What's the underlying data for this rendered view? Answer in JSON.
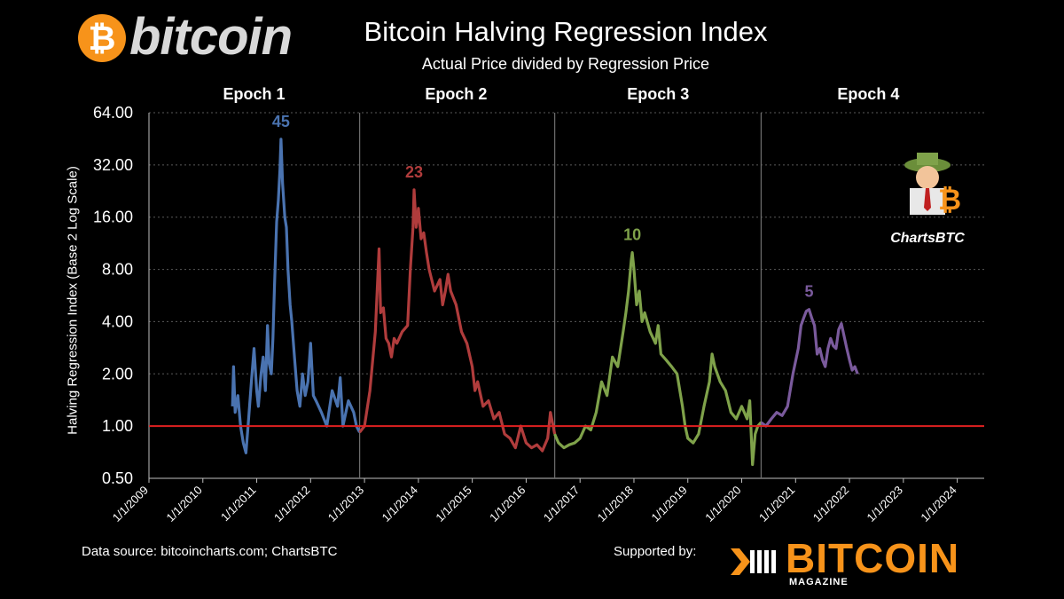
{
  "header": {
    "logo_symbol": "₿",
    "logo_text": "bitcoin",
    "title": "Bitcoin Halving Regression Index",
    "subtitle": "Actual Price divided by Regression Price"
  },
  "footer": {
    "source": "Data source: bitcoincharts.com; ChartsBTC",
    "supported_by": "Supported by:",
    "sponsor_name": "BITCOIN",
    "sponsor_sub": "MAGAZINE"
  },
  "watermark": {
    "label": "ChartsBTC"
  },
  "chart_data": {
    "type": "line",
    "title": "Bitcoin Halving Regression Index",
    "ylabel": "Halving Regression Index (Base 2 Log Scale)",
    "xlabel": "",
    "y_scale": "log2",
    "ylim": [
      0.5,
      64
    ],
    "y_ticks": [
      "0.50",
      "1.00",
      "2.00",
      "4.00",
      "8.00",
      "16.00",
      "32.00",
      "64.00"
    ],
    "x_ticks": [
      "1/1/2009",
      "1/1/2010",
      "1/1/2011",
      "1/1/2012",
      "1/1/2013",
      "1/1/2014",
      "1/1/2015",
      "1/1/2016",
      "1/1/2017",
      "1/1/2018",
      "1/1/2019",
      "1/1/2020",
      "1/1/2021",
      "1/1/2022",
      "1/1/2023",
      "1/1/2024"
    ],
    "xlim": [
      2009.0,
      2024.5
    ],
    "reference_line": {
      "y": 1.0,
      "color": "#e02020"
    },
    "halving_dates": [
      2012.91,
      2016.53,
      2020.36
    ],
    "epochs": [
      {
        "label": "Epoch 1",
        "center": 2010.95
      },
      {
        "label": "Epoch 2",
        "center": 2014.7
      },
      {
        "label": "Epoch 3",
        "center": 2018.45
      },
      {
        "label": "Epoch 4",
        "center": 2022.35
      }
    ],
    "series": [
      {
        "name": "Epoch 1",
        "color": "#4a73b0",
        "peak_label": "45",
        "peak": [
          2011.45,
          45
        ],
        "points": [
          [
            2010.55,
            1.3
          ],
          [
            2010.57,
            2.2
          ],
          [
            2010.6,
            1.2
          ],
          [
            2010.65,
            1.5
          ],
          [
            2010.7,
            1.0
          ],
          [
            2010.75,
            0.8
          ],
          [
            2010.8,
            0.7
          ],
          [
            2010.85,
            1.1
          ],
          [
            2010.9,
            1.8
          ],
          [
            2010.95,
            2.8
          ],
          [
            2011.0,
            1.6
          ],
          [
            2011.03,
            1.3
          ],
          [
            2011.08,
            2.0
          ],
          [
            2011.12,
            2.5
          ],
          [
            2011.16,
            1.6
          ],
          [
            2011.2,
            3.8
          ],
          [
            2011.23,
            2.3
          ],
          [
            2011.27,
            2.0
          ],
          [
            2011.3,
            3.2
          ],
          [
            2011.33,
            6.5
          ],
          [
            2011.37,
            15
          ],
          [
            2011.4,
            20
          ],
          [
            2011.43,
            30
          ],
          [
            2011.45,
            45
          ],
          [
            2011.48,
            25
          ],
          [
            2011.52,
            16
          ],
          [
            2011.55,
            14
          ],
          [
            2011.58,
            8
          ],
          [
            2011.62,
            5
          ],
          [
            2011.65,
            4
          ],
          [
            2011.7,
            2.5
          ],
          [
            2011.75,
            1.6
          ],
          [
            2011.8,
            1.3
          ],
          [
            2011.85,
            2.0
          ],
          [
            2011.9,
            1.5
          ],
          [
            2011.95,
            1.8
          ],
          [
            2012.0,
            3.0
          ],
          [
            2012.05,
            1.5
          ],
          [
            2012.1,
            1.4
          ],
          [
            2012.2,
            1.2
          ],
          [
            2012.3,
            1.0
          ],
          [
            2012.4,
            1.6
          ],
          [
            2012.5,
            1.3
          ],
          [
            2012.55,
            1.9
          ],
          [
            2012.6,
            1.0
          ],
          [
            2012.7,
            1.4
          ],
          [
            2012.8,
            1.2
          ],
          [
            2012.85,
            1.0
          ],
          [
            2012.91,
            0.92
          ]
        ]
      },
      {
        "name": "Epoch 2",
        "color": "#b03c3c",
        "peak_label": "23",
        "peak": [
          2013.92,
          23
        ],
        "points": [
          [
            2012.91,
            0.92
          ],
          [
            2013.0,
            1.0
          ],
          [
            2013.1,
            1.6
          ],
          [
            2013.2,
            3.5
          ],
          [
            2013.27,
            10.5
          ],
          [
            2013.3,
            4.5
          ],
          [
            2013.35,
            4.8
          ],
          [
            2013.4,
            3.2
          ],
          [
            2013.45,
            3.0
          ],
          [
            2013.5,
            2.5
          ],
          [
            2013.55,
            3.2
          ],
          [
            2013.6,
            3.0
          ],
          [
            2013.7,
            3.5
          ],
          [
            2013.8,
            3.8
          ],
          [
            2013.85,
            8
          ],
          [
            2013.9,
            14
          ],
          [
            2013.92,
            23
          ],
          [
            2013.96,
            14
          ],
          [
            2014.0,
            18
          ],
          [
            2014.05,
            12
          ],
          [
            2014.1,
            13
          ],
          [
            2014.15,
            10
          ],
          [
            2014.2,
            8
          ],
          [
            2014.3,
            6
          ],
          [
            2014.4,
            7
          ],
          [
            2014.45,
            5
          ],
          [
            2014.5,
            6
          ],
          [
            2014.55,
            7.5
          ],
          [
            2014.6,
            6
          ],
          [
            2014.7,
            5
          ],
          [
            2014.8,
            3.5
          ],
          [
            2014.9,
            3.0
          ],
          [
            2015.0,
            2.2
          ],
          [
            2015.05,
            1.6
          ],
          [
            2015.1,
            1.8
          ],
          [
            2015.2,
            1.3
          ],
          [
            2015.3,
            1.4
          ],
          [
            2015.4,
            1.1
          ],
          [
            2015.5,
            1.2
          ],
          [
            2015.6,
            0.9
          ],
          [
            2015.7,
            0.85
          ],
          [
            2015.8,
            0.75
          ],
          [
            2015.9,
            1.0
          ],
          [
            2016.0,
            0.8
          ],
          [
            2016.1,
            0.75
          ],
          [
            2016.2,
            0.78
          ],
          [
            2016.3,
            0.72
          ],
          [
            2016.4,
            0.85
          ],
          [
            2016.45,
            1.2
          ],
          [
            2016.53,
            0.9
          ]
        ]
      },
      {
        "name": "Epoch 3",
        "color": "#7fa24a",
        "peak_label": "10",
        "peak": [
          2017.97,
          10
        ],
        "points": [
          [
            2016.53,
            0.9
          ],
          [
            2016.6,
            0.8
          ],
          [
            2016.7,
            0.75
          ],
          [
            2016.8,
            0.78
          ],
          [
            2016.9,
            0.8
          ],
          [
            2017.0,
            0.85
          ],
          [
            2017.1,
            1.0
          ],
          [
            2017.2,
            0.95
          ],
          [
            2017.3,
            1.2
          ],
          [
            2017.4,
            1.8
          ],
          [
            2017.5,
            1.5
          ],
          [
            2017.6,
            2.5
          ],
          [
            2017.7,
            2.2
          ],
          [
            2017.8,
            3.5
          ],
          [
            2017.85,
            4.5
          ],
          [
            2017.9,
            6
          ],
          [
            2017.95,
            9
          ],
          [
            2017.97,
            10
          ],
          [
            2018.0,
            8
          ],
          [
            2018.05,
            5
          ],
          [
            2018.1,
            6
          ],
          [
            2018.15,
            4
          ],
          [
            2018.2,
            4.5
          ],
          [
            2018.3,
            3.5
          ],
          [
            2018.4,
            3.0
          ],
          [
            2018.45,
            3.8
          ],
          [
            2018.5,
            2.6
          ],
          [
            2018.6,
            2.4
          ],
          [
            2018.7,
            2.2
          ],
          [
            2018.8,
            2.0
          ],
          [
            2018.9,
            1.3
          ],
          [
            2018.95,
            1.0
          ],
          [
            2019.0,
            0.85
          ],
          [
            2019.1,
            0.8
          ],
          [
            2019.2,
            0.9
          ],
          [
            2019.3,
            1.3
          ],
          [
            2019.4,
            1.8
          ],
          [
            2019.45,
            2.6
          ],
          [
            2019.5,
            2.2
          ],
          [
            2019.6,
            1.8
          ],
          [
            2019.7,
            1.6
          ],
          [
            2019.8,
            1.2
          ],
          [
            2019.9,
            1.1
          ],
          [
            2020.0,
            1.3
          ],
          [
            2020.1,
            1.1
          ],
          [
            2020.15,
            1.4
          ],
          [
            2020.2,
            0.6
          ],
          [
            2020.25,
            0.9
          ],
          [
            2020.3,
            1.0
          ],
          [
            2020.36,
            1.05
          ]
        ]
      },
      {
        "name": "Epoch 4",
        "color": "#7a5a9c",
        "peak_label": "5",
        "peak": [
          2021.25,
          4.7
        ],
        "points": [
          [
            2020.36,
            1.05
          ],
          [
            2020.45,
            1.0
          ],
          [
            2020.55,
            1.1
          ],
          [
            2020.65,
            1.2
          ],
          [
            2020.75,
            1.15
          ],
          [
            2020.85,
            1.3
          ],
          [
            2020.95,
            2.0
          ],
          [
            2021.05,
            2.8
          ],
          [
            2021.1,
            3.8
          ],
          [
            2021.15,
            4.2
          ],
          [
            2021.2,
            4.6
          ],
          [
            2021.25,
            4.7
          ],
          [
            2021.3,
            4.2
          ],
          [
            2021.35,
            3.8
          ],
          [
            2021.4,
            2.6
          ],
          [
            2021.45,
            2.8
          ],
          [
            2021.5,
            2.4
          ],
          [
            2021.55,
            2.2
          ],
          [
            2021.6,
            2.8
          ],
          [
            2021.65,
            3.2
          ],
          [
            2021.7,
            2.9
          ],
          [
            2021.75,
            2.8
          ],
          [
            2021.8,
            3.6
          ],
          [
            2021.85,
            3.9
          ],
          [
            2021.9,
            3.3
          ],
          [
            2021.95,
            2.8
          ],
          [
            2022.0,
            2.4
          ],
          [
            2022.05,
            2.1
          ],
          [
            2022.1,
            2.2
          ],
          [
            2022.15,
            2.0
          ]
        ]
      }
    ]
  }
}
